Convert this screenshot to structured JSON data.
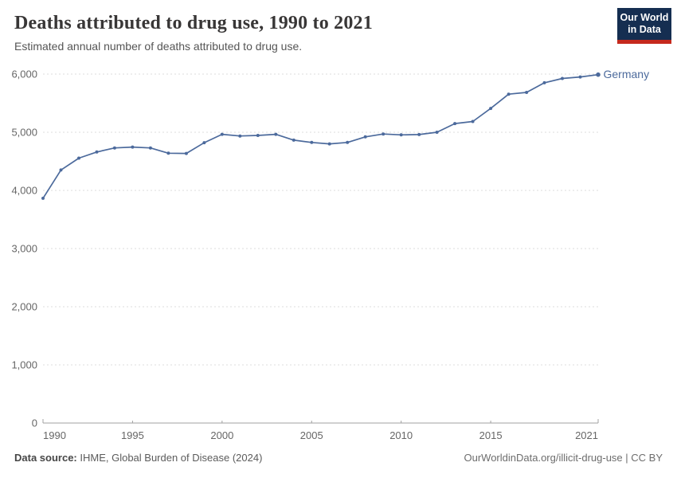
{
  "header": {
    "title": "Deaths attributed to drug use, 1990 to 2021",
    "subtitle": "Estimated annual number of deaths attributed to drug use."
  },
  "logo": {
    "line1": "Our World",
    "line2": "in Data"
  },
  "chart_data": {
    "type": "line",
    "title": "Deaths attributed to drug use, 1990 to 2021",
    "x": [
      1990,
      1991,
      1992,
      1993,
      1994,
      1995,
      1996,
      1997,
      1998,
      1999,
      2000,
      2001,
      2002,
      2003,
      2004,
      2005,
      2006,
      2007,
      2008,
      2009,
      2010,
      2011,
      2012,
      2013,
      2014,
      2015,
      2016,
      2017,
      2018,
      2019,
      2020,
      2021
    ],
    "series": [
      {
        "name": "Germany",
        "color": "#4C6A9C",
        "values": [
          3865,
          4350,
          4555,
          4660,
          4730,
          4745,
          4730,
          4640,
          4635,
          4820,
          4965,
          4935,
          4945,
          4965,
          4865,
          4825,
          4800,
          4825,
          4920,
          4970,
          4955,
          4960,
          5000,
          5150,
          5185,
          5410,
          5655,
          5685,
          5850,
          5925,
          5950,
          5990
        ]
      }
    ],
    "xlabel": "",
    "ylabel": "",
    "xlim": [
      1990,
      2021
    ],
    "ylim": [
      0,
      6000
    ],
    "xticks": [
      1990,
      1995,
      2000,
      2005,
      2010,
      2015,
      2021
    ],
    "yticks": [
      0,
      1000,
      2000,
      3000,
      4000,
      5000,
      6000
    ],
    "grid": "horizontal-dashed",
    "legend": "end-of-line-label",
    "end_label": "Germany"
  },
  "footer": {
    "source_label": "Data source:",
    "source_text": " IHME, Global Burden of Disease (2024)",
    "link_text": "OurWorldinData.org/illicit-drug-use | CC BY"
  },
  "colors": {
    "line": "#4C6A9C",
    "entity_label": "#4C6A9C",
    "grid": "#DCDCDC",
    "axis": "#A0A0A0",
    "tick_label": "#666666",
    "title": "#383636",
    "subtitle": "#555555",
    "footer": "#5B5B5B",
    "logo_bg": "#152E51",
    "logo_bar": "#C5291D"
  }
}
